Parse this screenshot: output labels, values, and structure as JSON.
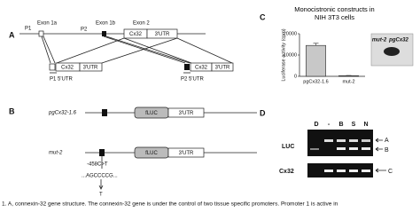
{
  "panel_a": {
    "label": "A",
    "exon_1a": "Exon 1a",
    "exon_1b": "Exon 1b",
    "exon_2": "Exon 2",
    "p1": "P1",
    "p2": "P2",
    "cx32": "Cx32",
    "utr3": "3'UTR",
    "p1_5utr": "P1 5'UTR",
    "p2_5utr": "P2 5'UTR",
    "cx32_left": "Cx32",
    "utr3_left": "3'UTR",
    "cx32_right": "Cx32",
    "utr3_right": "3'UTR"
  },
  "panel_b": {
    "label": "B",
    "construct_1": "pgCx32-1.6",
    "construct_2": "mut-2",
    "fluc_1": "fLUC",
    "utr_1": "3'UTR",
    "fluc_2": "fLUC",
    "utr_2": "3'UTR",
    "mutation": "-458C>T",
    "sequence": "...AGCCCCG...",
    "substitution": "T"
  },
  "chart_data": {
    "type": "bar",
    "panel_label": "C",
    "title": "Monocistronic constructs in NIH 3T3 cells",
    "y_label": "Luciferase activity (cpm)",
    "categories": [
      "pgCx32-1.6",
      "mut-2"
    ],
    "values": [
      14500,
      300
    ],
    "errors": [
      1000,
      100
    ],
    "color": "#c8c8c8",
    "ylim": [
      0,
      20000
    ],
    "yticks": [
      0,
      10000,
      20000
    ],
    "inset_labels": [
      "mut-2",
      "pgCx32"
    ]
  },
  "panel_d": {
    "label": "D",
    "lanes": [
      "D",
      "-",
      "B",
      "S",
      "N"
    ],
    "row_luc": "LUC",
    "row_cx32": "Cx32",
    "band_a": "A",
    "band_b": "B",
    "band_c": "C"
  },
  "caption": "1. A, connexin-32 gene structure. The connexin-32 gene is under the control of two tissue specific promoters. Promoter 1 is active in"
}
